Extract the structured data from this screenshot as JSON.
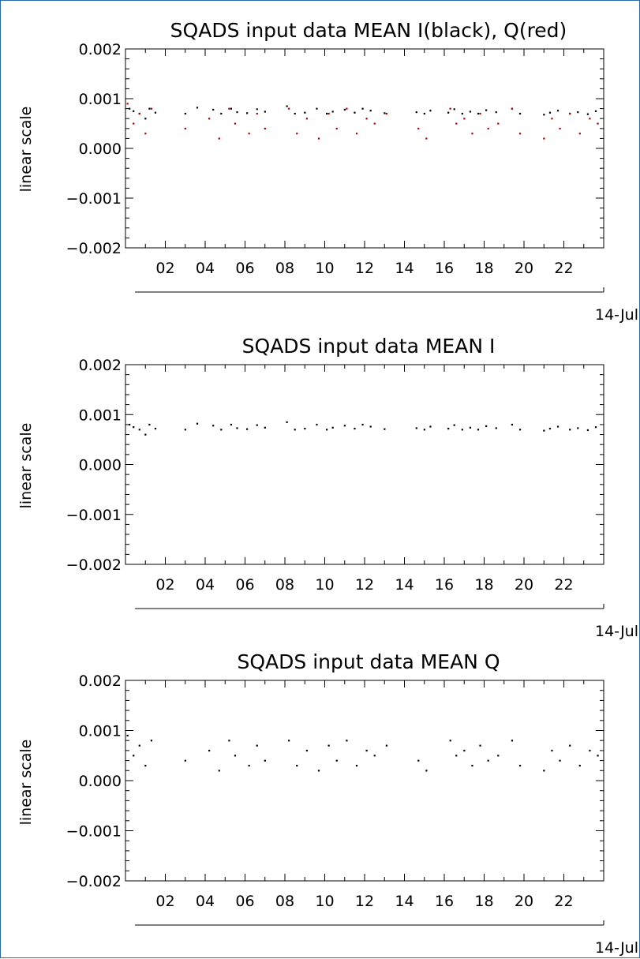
{
  "chart_data": [
    {
      "type": "scatter",
      "title": "SQADS input data MEAN I(black), Q(red)",
      "ylabel": "linear scale",
      "xlabel": "",
      "date_label": "14-Jul",
      "x_unit": "hour",
      "xlim": [
        0,
        24
      ],
      "ylim": [
        -0.002,
        0.002
      ],
      "x_ticks": [
        "02",
        "04",
        "06",
        "08",
        "10",
        "12",
        "14",
        "16",
        "18",
        "20",
        "22"
      ],
      "y_ticks": [
        "0.002",
        "0.001",
        "0.000",
        "−0.001",
        "−0.002"
      ],
      "grid": false,
      "series": [
        {
          "name": "I",
          "color": "#000000",
          "x": [
            0.2,
            0.4,
            0.7,
            1.0,
            1.2,
            1.5,
            3.0,
            3.6,
            4.4,
            4.8,
            5.3,
            5.6,
            6.1,
            6.6,
            7.0,
            8.1,
            8.5,
            9.0,
            9.6,
            10.1,
            10.4,
            11.0,
            11.5,
            11.9,
            12.3,
            13.0,
            14.6,
            15.0,
            15.3,
            16.2,
            16.5,
            16.9,
            17.3,
            17.7,
            18.1,
            18.6,
            19.4,
            19.8,
            21.0,
            21.3,
            21.7,
            22.3,
            22.7,
            23.2,
            23.6
          ],
          "y": [
            0.0008,
            0.00075,
            0.0007,
            0.0006,
            0.0008,
            0.00072,
            0.0007,
            0.00082,
            0.00078,
            0.0007,
            0.0008,
            0.00073,
            0.00071,
            0.00079,
            0.00074,
            0.00085,
            0.0007,
            0.00072,
            0.0008,
            0.0007,
            0.00074,
            0.00078,
            0.00072,
            0.0008,
            0.00076,
            0.00071,
            0.00073,
            0.0007,
            0.00076,
            0.00072,
            0.00079,
            0.0007,
            0.00074,
            0.0007,
            0.00077,
            0.00073,
            0.0008,
            0.0007,
            0.00068,
            0.00072,
            0.00076,
            0.0007,
            0.00073,
            0.00069,
            0.00075
          ]
        },
        {
          "name": "Q",
          "color": "#aa0000",
          "x": [
            0.1,
            0.4,
            0.7,
            1.0,
            1.3,
            3.0,
            4.2,
            4.7,
            5.2,
            5.5,
            6.2,
            6.6,
            7.0,
            8.2,
            8.6,
            9.1,
            9.7,
            10.2,
            10.6,
            11.1,
            11.6,
            12.1,
            12.5,
            13.1,
            14.7,
            15.1,
            16.3,
            16.6,
            17.0,
            17.4,
            17.8,
            18.2,
            18.7,
            19.4,
            19.8,
            21.0,
            21.4,
            21.8,
            22.3,
            22.8,
            23.3,
            23.7
          ],
          "y": [
            0.0009,
            0.0005,
            0.0007,
            0.0003,
            0.0008,
            0.0004,
            0.0006,
            0.0002,
            0.0008,
            0.0005,
            0.0003,
            0.0007,
            0.0004,
            0.0008,
            0.0003,
            0.0006,
            0.0002,
            0.0007,
            0.0004,
            0.0008,
            0.0003,
            0.0006,
            0.0005,
            0.0007,
            0.0004,
            0.0002,
            0.0008,
            0.0005,
            0.0006,
            0.0003,
            0.0007,
            0.0004,
            0.0005,
            0.0008,
            0.0003,
            0.0002,
            0.0006,
            0.0004,
            0.0007,
            0.0003,
            0.0006,
            0.0005
          ]
        }
      ]
    },
    {
      "type": "scatter",
      "title": "SQADS input data MEAN I",
      "ylabel": "linear scale",
      "xlabel": "",
      "date_label": "14-Jul",
      "x_unit": "hour",
      "xlim": [
        0,
        24
      ],
      "ylim": [
        -0.002,
        0.002
      ],
      "x_ticks": [
        "02",
        "04",
        "06",
        "08",
        "10",
        "12",
        "14",
        "16",
        "18",
        "20",
        "22"
      ],
      "y_ticks": [
        "0.002",
        "0.001",
        "0.000",
        "−0.001",
        "−0.002"
      ],
      "grid": false,
      "series": [
        {
          "name": "",
          "color": "#000000",
          "x": [
            0.2,
            0.4,
            0.7,
            1.0,
            1.2,
            1.5,
            3.0,
            3.6,
            4.4,
            4.8,
            5.3,
            5.6,
            6.1,
            6.6,
            7.0,
            8.1,
            8.5,
            9.0,
            9.6,
            10.1,
            10.4,
            11.0,
            11.5,
            11.9,
            12.3,
            13.0,
            14.6,
            15.0,
            15.3,
            16.2,
            16.5,
            16.9,
            17.3,
            17.7,
            18.1,
            18.6,
            19.4,
            19.8,
            21.0,
            21.3,
            21.7,
            22.3,
            22.7,
            23.2,
            23.6
          ],
          "y": [
            0.0008,
            0.00075,
            0.0007,
            0.0006,
            0.0008,
            0.00072,
            0.0007,
            0.00082,
            0.00078,
            0.0007,
            0.0008,
            0.00073,
            0.00071,
            0.00079,
            0.00074,
            0.00085,
            0.0007,
            0.00072,
            0.0008,
            0.0007,
            0.00074,
            0.00078,
            0.00072,
            0.0008,
            0.00076,
            0.00071,
            0.00073,
            0.0007,
            0.00076,
            0.00072,
            0.00079,
            0.0007,
            0.00074,
            0.0007,
            0.00077,
            0.00073,
            0.0008,
            0.0007,
            0.00068,
            0.00072,
            0.00076,
            0.0007,
            0.00073,
            0.00069,
            0.00075
          ]
        }
      ]
    },
    {
      "type": "scatter",
      "title": "SQADS input data MEAN Q",
      "ylabel": "linear scale",
      "xlabel": "",
      "date_label": "14-Jul",
      "x_unit": "hour",
      "xlim": [
        0,
        24
      ],
      "ylim": [
        -0.002,
        0.002
      ],
      "x_ticks": [
        "02",
        "04",
        "06",
        "08",
        "10",
        "12",
        "14",
        "16",
        "18",
        "20",
        "22"
      ],
      "y_ticks": [
        "0.002",
        "0.001",
        "0.000",
        "−0.001",
        "−0.002"
      ],
      "grid": false,
      "series": [
        {
          "name": "",
          "color": "#000000",
          "x": [
            0.1,
            0.4,
            0.7,
            1.0,
            1.3,
            3.0,
            4.2,
            4.7,
            5.2,
            5.5,
            6.2,
            6.6,
            7.0,
            8.2,
            8.6,
            9.1,
            9.7,
            10.2,
            10.6,
            11.1,
            11.6,
            12.1,
            12.5,
            13.1,
            14.7,
            15.1,
            16.3,
            16.6,
            17.0,
            17.4,
            17.8,
            18.2,
            18.7,
            19.4,
            19.8,
            21.0,
            21.4,
            21.8,
            22.3,
            22.8,
            23.3,
            23.7
          ],
          "y": [
            0.0009,
            0.0005,
            0.0007,
            0.0003,
            0.0008,
            0.0004,
            0.0006,
            0.0002,
            0.0008,
            0.0005,
            0.0003,
            0.0007,
            0.0004,
            0.0008,
            0.0003,
            0.0006,
            0.0002,
            0.0007,
            0.0004,
            0.0008,
            0.0003,
            0.0006,
            0.0005,
            0.0007,
            0.0004,
            0.0002,
            0.0008,
            0.0005,
            0.0006,
            0.0003,
            0.0007,
            0.0004,
            0.0005,
            0.0008,
            0.0003,
            0.0002,
            0.0006,
            0.0004,
            0.0007,
            0.0003,
            0.0006,
            0.0005
          ]
        }
      ]
    }
  ]
}
